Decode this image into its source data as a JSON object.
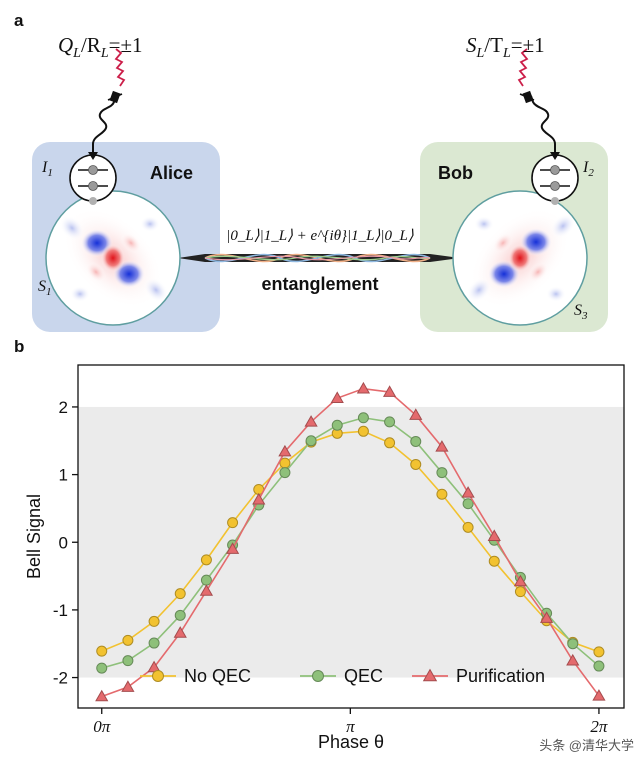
{
  "panel_a": {
    "label": "a",
    "alice": {
      "name": "Alice",
      "measure_label": "Q_L/R_L=±1",
      "measure_label_pre": "Q",
      "measure_label_sub1": "L",
      "measure_label_mid": "/R",
      "measure_label_sub2": "L",
      "measure_label_post": "=±1",
      "qubit": "I",
      "qubit_sub": "1",
      "storage": "S",
      "storage_sub": "1",
      "color": "#c9d6ec"
    },
    "bob": {
      "name": "Bob",
      "measure_label_pre": "S",
      "measure_label_sub1": "L",
      "measure_label_mid": "/T",
      "measure_label_sub2": "L",
      "measure_label_post": "=±1",
      "qubit": "I",
      "qubit_sub": "2",
      "storage": "S",
      "storage_sub": "3",
      "color": "#dbe8d2"
    },
    "state_formula": "|0_L⟩|1_L⟩ + e^{iθ}|1_L⟩|0_L⟩",
    "link_label": "entanglement"
  },
  "chart_data": {
    "panel_label": "b",
    "type": "line",
    "xlabel": "Phase θ",
    "ylabel": "Bell Signal",
    "xlim": [
      -0.3,
      6.6
    ],
    "ylim": [
      -2.45,
      2.62
    ],
    "x_ticks": [
      {
        "value": 0,
        "label": "0π"
      },
      {
        "value": 3.1416,
        "label": "π"
      },
      {
        "value": 6.2832,
        "label": "2π"
      }
    ],
    "y_ticks": [
      {
        "value": 2,
        "label": "2"
      },
      {
        "value": 1,
        "label": "1"
      },
      {
        "value": 0,
        "label": "0"
      },
      {
        "value": -1,
        "label": "-1"
      },
      {
        "value": -2,
        "label": "-2"
      }
    ],
    "shaded_band": [
      -2,
      2
    ],
    "legend_position": "bottom",
    "series": [
      {
        "name": "No QEC",
        "marker": "circle",
        "color": "#f2c230",
        "x": [
          0,
          0.3307,
          0.6614,
          0.9921,
          1.3228,
          1.6535,
          1.9842,
          2.3149,
          2.6456,
          2.9762,
          3.3069,
          3.6376,
          3.9683,
          4.299,
          4.6297,
          4.9604,
          5.2911,
          5.6218,
          5.9525,
          6.2832
        ],
        "values": [
          -1.61,
          -1.45,
          -1.17,
          -0.76,
          -0.26,
          0.29,
          0.78,
          1.17,
          1.48,
          1.61,
          1.64,
          1.47,
          1.15,
          0.71,
          0.22,
          -0.28,
          -0.73,
          -1.16,
          -1.48,
          -1.62
        ]
      },
      {
        "name": "QEC",
        "marker": "circle",
        "color": "#8ec07a",
        "x": [
          0,
          0.3307,
          0.6614,
          0.9921,
          1.3228,
          1.6535,
          1.9842,
          2.3149,
          2.6456,
          2.9762,
          3.3069,
          3.6376,
          3.9683,
          4.299,
          4.6297,
          4.9604,
          5.2911,
          5.6218,
          5.9525,
          6.2832
        ],
        "values": [
          -1.86,
          -1.75,
          -1.49,
          -1.08,
          -0.56,
          -0.04,
          0.55,
          1.03,
          1.5,
          1.73,
          1.84,
          1.78,
          1.49,
          1.03,
          0.57,
          0.03,
          -0.52,
          -1.05,
          -1.5,
          -1.83
        ]
      },
      {
        "name": "Purification",
        "marker": "triangle",
        "color": "#e46a6d",
        "x": [
          0,
          0.3307,
          0.6614,
          0.9921,
          1.3228,
          1.6535,
          1.9842,
          2.3149,
          2.6456,
          2.9762,
          3.3069,
          3.6376,
          3.9683,
          4.299,
          4.6297,
          4.9604,
          5.2911,
          5.6218,
          5.9525,
          6.2832
        ],
        "values": [
          -2.28,
          -2.14,
          -1.85,
          -1.34,
          -0.72,
          -0.1,
          0.63,
          1.34,
          1.78,
          2.13,
          2.27,
          2.22,
          1.88,
          1.41,
          0.73,
          0.09,
          -0.58,
          -1.12,
          -1.75,
          -2.27
        ]
      }
    ]
  },
  "watermark": "头条 @清华大学"
}
